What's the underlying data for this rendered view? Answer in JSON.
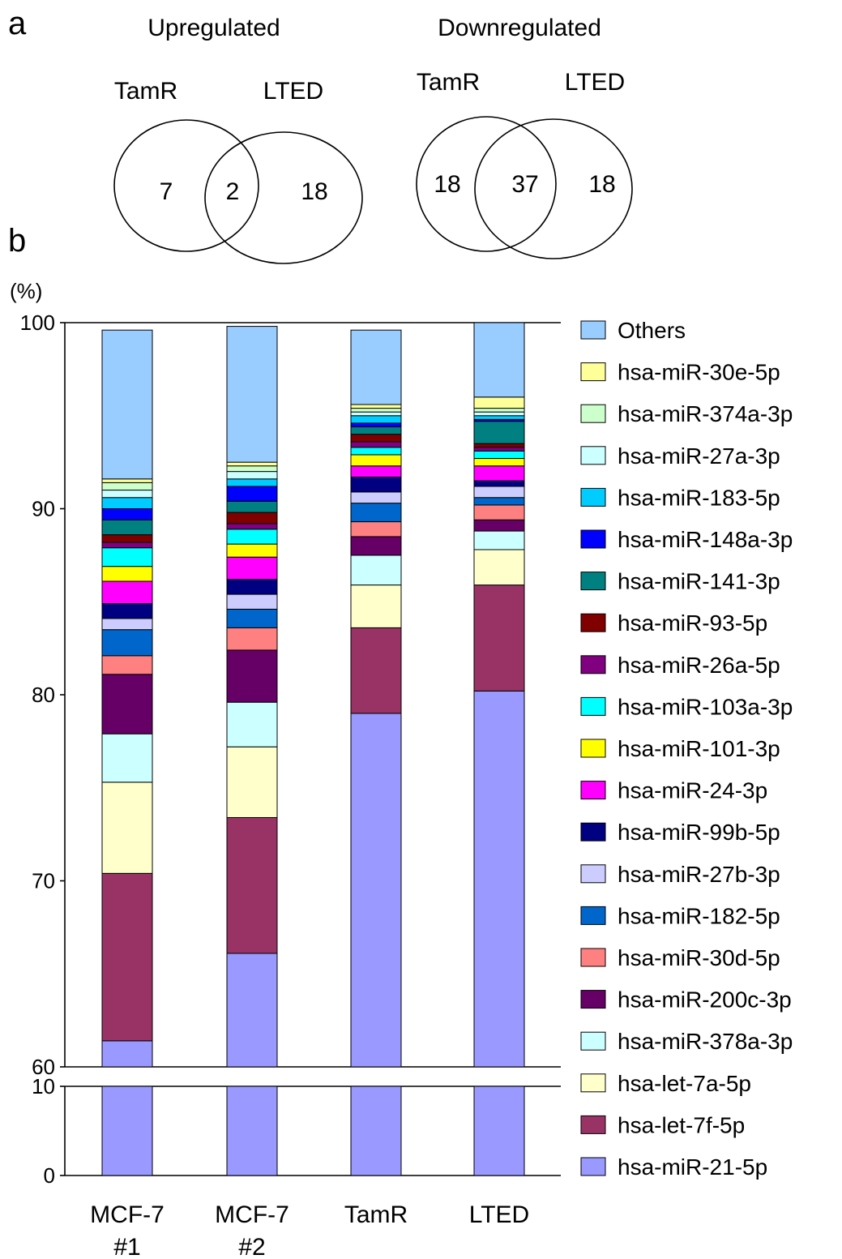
{
  "panel_a": {
    "letter": "a",
    "upregulated": {
      "title": "Upregulated",
      "left_label": "TamR",
      "right_label": "LTED",
      "left_only": "7",
      "overlap": "2",
      "right_only": "18"
    },
    "downregulated": {
      "title": "Downregulated",
      "left_label": "TamR",
      "right_label": "LTED",
      "left_only": "18",
      "overlap": "37",
      "right_only": "18"
    }
  },
  "panel_b": {
    "letter": "b",
    "unit": "(%)"
  },
  "chart_data": {
    "type": "bar",
    "stacked": true,
    "ylabel": "(%)",
    "ylim": [
      0,
      100
    ],
    "axis_break": [
      10,
      60
    ],
    "yticks_upper": [
      "60",
      "70",
      "80",
      "90",
      "100"
    ],
    "yticks_lower": [
      "0",
      "10"
    ],
    "categories": [
      "MCF-7\n#1",
      "MCF-7\n#2",
      "TamR",
      "LTED"
    ],
    "legend_position": "right",
    "series": [
      {
        "name": "hsa-miR-21-5p",
        "color": "#9999ff",
        "values": [
          61.4,
          66.1,
          79.0,
          80.2
        ]
      },
      {
        "name": "hsa-let-7f-5p",
        "color": "#993366",
        "values": [
          9.0,
          7.3,
          4.6,
          5.7
        ]
      },
      {
        "name": "hsa-let-7a-5p",
        "color": "#ffffcc",
        "values": [
          4.9,
          3.8,
          2.3,
          1.9
        ]
      },
      {
        "name": "hsa-miR-378a-3p",
        "color": "#ccffff",
        "values": [
          2.6,
          2.4,
          1.6,
          1.0
        ]
      },
      {
        "name": "hsa-miR-200c-3p",
        "color": "#660066",
        "values": [
          3.2,
          2.8,
          1.0,
          0.6
        ]
      },
      {
        "name": "hsa-miR-30d-5p",
        "color": "#ff8080",
        "values": [
          1.0,
          1.2,
          0.8,
          0.8
        ]
      },
      {
        "name": "hsa-miR-182-5p",
        "color": "#0066cc",
        "values": [
          1.4,
          1.0,
          1.0,
          0.4
        ]
      },
      {
        "name": "hsa-miR-27b-3p",
        "color": "#ccccff",
        "values": [
          0.6,
          0.8,
          0.6,
          0.6
        ]
      },
      {
        "name": "hsa-miR-99b-5p",
        "color": "#000080",
        "values": [
          0.8,
          0.8,
          0.8,
          0.3
        ]
      },
      {
        "name": "hsa-miR-24-3p",
        "color": "#ff00ff",
        "values": [
          1.2,
          1.2,
          0.6,
          0.8
        ]
      },
      {
        "name": "hsa-miR-101-3p",
        "color": "#ffff00",
        "values": [
          0.8,
          0.7,
          0.6,
          0.4
        ]
      },
      {
        "name": "hsa-miR-103a-3p",
        "color": "#00ffff",
        "values": [
          1.0,
          0.8,
          0.4,
          0.4
        ]
      },
      {
        "name": "hsa-miR-26a-5p",
        "color": "#800080",
        "values": [
          0.3,
          0.3,
          0.3,
          0.2
        ]
      },
      {
        "name": "hsa-miR-93-5p",
        "color": "#800000",
        "values": [
          0.4,
          0.6,
          0.4,
          0.2
        ]
      },
      {
        "name": "hsa-miR-141-3p",
        "color": "#008080",
        "values": [
          0.8,
          0.6,
          0.4,
          1.2
        ]
      },
      {
        "name": "hsa-miR-148a-3p",
        "color": "#0000ff",
        "values": [
          0.6,
          0.8,
          0.2,
          0.1
        ]
      },
      {
        "name": "hsa-miR-183-5p",
        "color": "#00ccff",
        "values": [
          0.6,
          0.4,
          0.4,
          0.2
        ]
      },
      {
        "name": "hsa-miR-27a-3p",
        "color": "#ccffff",
        "values": [
          0.4,
          0.4,
          0.2,
          0.2
        ]
      },
      {
        "name": "hsa-miR-374a-3p",
        "color": "#ccffcc",
        "values": [
          0.4,
          0.3,
          0.2,
          0.2
        ]
      },
      {
        "name": "hsa-miR-30e-5p",
        "color": "#ffff99",
        "values": [
          0.2,
          0.2,
          0.2,
          0.6
        ]
      },
      {
        "name": "Others",
        "color": "#99ccff",
        "values": [
          8.0,
          7.3,
          4.0,
          4.1
        ]
      }
    ]
  }
}
